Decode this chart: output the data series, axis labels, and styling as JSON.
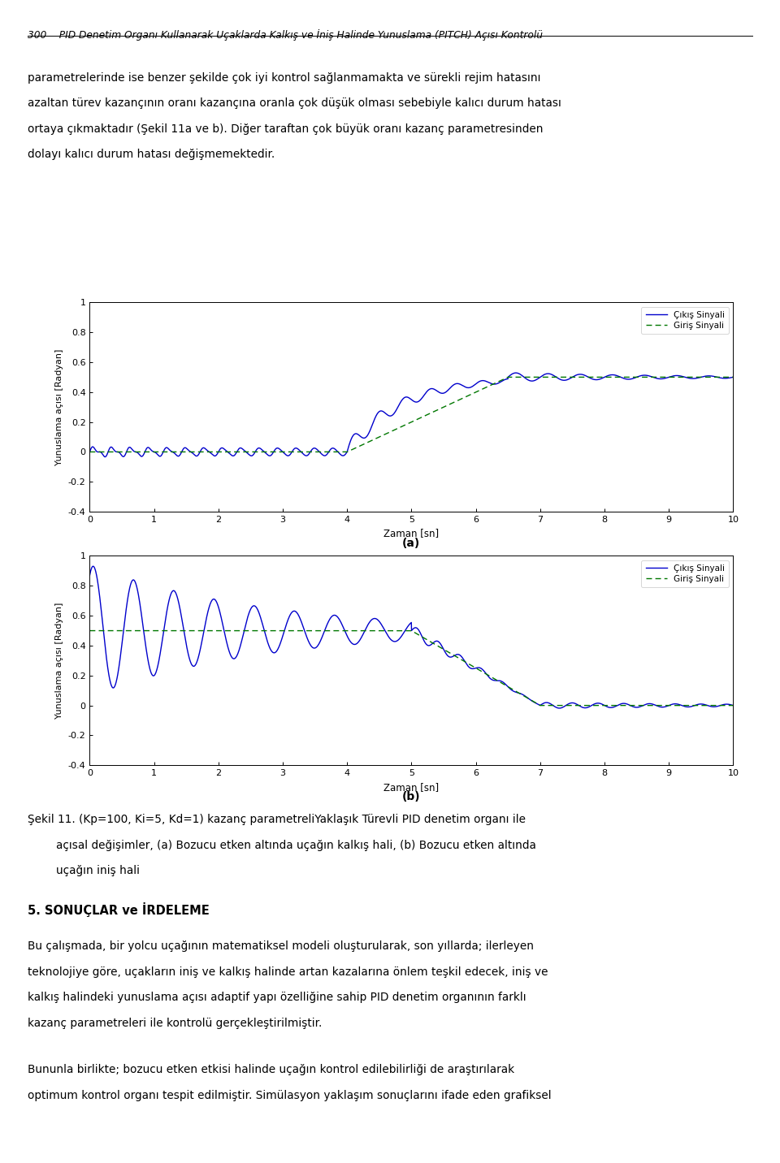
{
  "page_width": 9.6,
  "page_height": 14.32,
  "bg_color": "#ffffff",
  "header_text": "300    PID Denetim Organı Kullanarak Uçaklarda Kalkış ve İniş Halinde Yunuslama (PITCH) Açısı Kontrolü",
  "para1_line1": "parametrelerinde ise benzer şekilde çok iyi kontrol sağlanmamakta ve sürekli rejim hatasını",
  "para1_line2": "azaltan türev kazançının oranı kazançına oranla çok düşük olması sebebiyle kalıcı durum hatası",
  "para1_line3": "ortaya çıkmaktadır (Şekil 11a ve b). Diğer taraftan çok büyük oranı kazanç parametresinden",
  "para1_line4": "dolayı kalıcı durum hatası değişmemektedir.",
  "ylabel": "Yunuslama açısı [Radyan]",
  "xlabel": "Zaman [sn]",
  "label_a": "(a)",
  "label_b": "(b)",
  "legend_output": "Çıkış Sinyali",
  "legend_input": "Giriş Sinyali",
  "line_color_output": "#0000cc",
  "line_color_input": "#007700",
  "caption_line1": "Şekil 11. (Kp=100, Ki=5, Kd=1) kazanç parametreliYaklaşık Türevli PID denetim organı ile",
  "caption_line2": "        açısal değişimler, (a) Bozucu etken altında uçağın kalkış hali, (b) Bozucu etken altında",
  "caption_line3": "        uçağın iniş hali",
  "sec5_title": "5. SONUÇLAR ve İRDELEME",
  "sec5_line1": "Bu çalışmada, bir yolcu uçağının matematiksel modeli oluşturularak, son yıllarda; ilerleyen",
  "sec5_line2": "teknolojiye göre, uçakların iniş ve kalkış halinde artan kazalarına önlem teşkil edecek, iniş ve",
  "sec5_line3": "kalkış halindeki yunuslama açısı adaptif yapı özelliğine sahip PID denetim organının farklı",
  "sec5_line4": "kazanç parametreleri ile kontrolü gerçekleştirilmiştir.",
  "last_line1": "Bununla birlikte; bozucu etken etkisi halinde uçağın kontrol edilebilirliği de araştırılarak",
  "last_line2": "optimum kontrol organı tespit edilmiştir. Simülasyon yaklaşım sonuçlarını ifade eden grafiksel"
}
